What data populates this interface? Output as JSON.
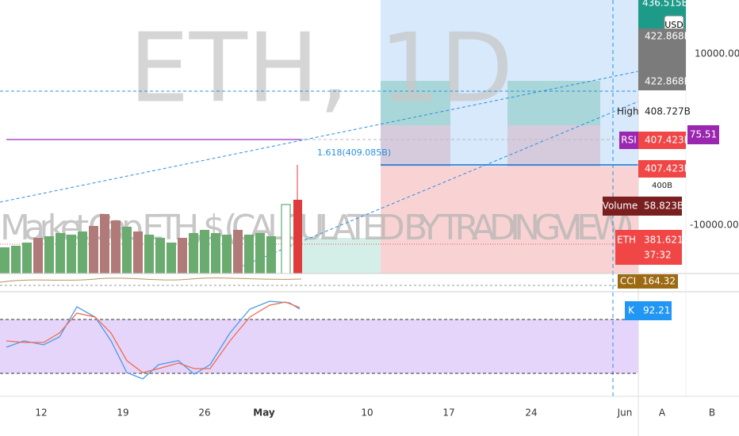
{
  "watermark": {
    "symbol": "ETH, 1D",
    "description": "Market Cap ETH, $ (CALCULATED BY TRADINGVIEW)"
  },
  "fib_label": "1.618(409.085B)",
  "price_scale": {
    "top": "436.515B",
    "currency": "USD",
    "labels": [
      "422.868B",
      "422.868B",
      "408.727B",
      "407.423B",
      "407.423B",
      "400B",
      "58.823B",
      "381.621B",
      "37:32"
    ],
    "tags": {
      "high": "High",
      "rsi": "RSI",
      "volume": "Volume",
      "eth": "ETH",
      "cci": "CCI",
      "k": "K"
    },
    "rsi_value": "75.51",
    "cci_value": "164.32",
    "k_value": "92.21"
  },
  "second_scale": [
    "10000.00",
    "-10000.00"
  ],
  "x_axis": [
    "12",
    "19",
    "26",
    "May",
    "10",
    "17",
    "24",
    "Jun"
  ],
  "scale_buttons": [
    "A",
    "B"
  ]
}
